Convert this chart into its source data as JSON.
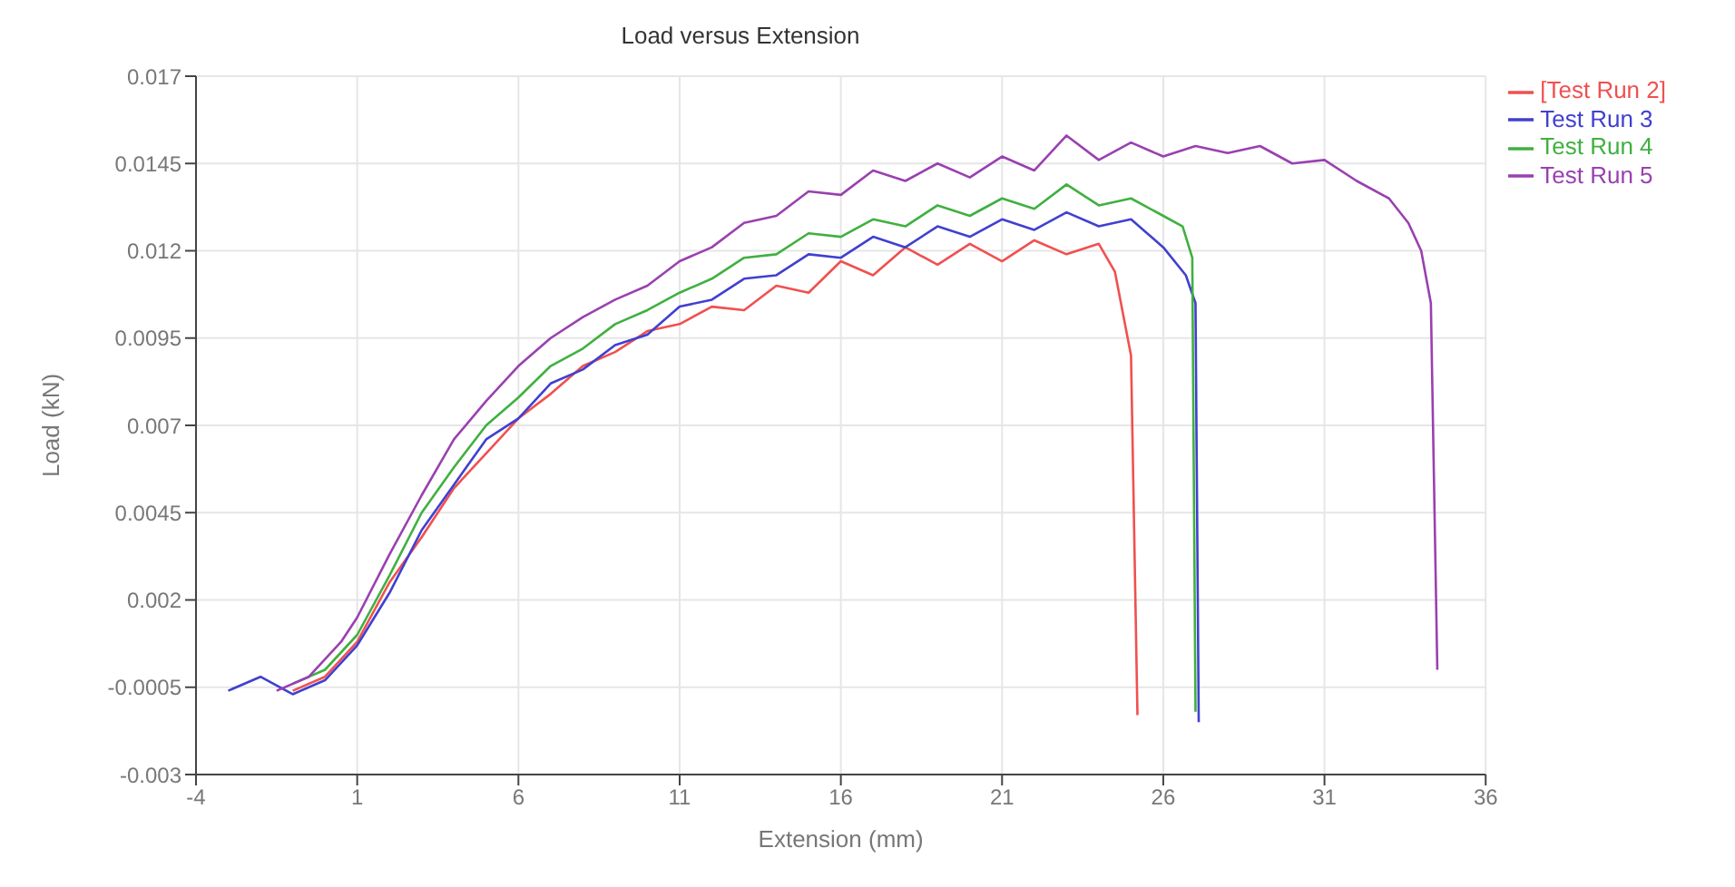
{
  "chart_data": {
    "type": "line",
    "title": "Load versus Extension",
    "xlabel": "Extension (mm)",
    "ylabel": "Load (kN)",
    "xlim": [
      -4,
      36
    ],
    "xticks": [
      -4,
      1,
      6,
      11,
      16,
      21,
      26,
      31,
      36
    ],
    "ylim": [
      -0.003,
      0.017
    ],
    "yticks": [
      -0.003,
      -0.0005,
      0.002,
      0.0045,
      0.007,
      0.0095,
      0.012,
      0.0145,
      0.017
    ],
    "grid": true,
    "legend": "top right",
    "series": [
      {
        "name": "[Test Run 2]",
        "color": "#f05050",
        "x": [
          -1,
          0,
          1,
          2,
          3,
          4,
          5,
          6,
          7,
          8,
          9,
          10,
          11,
          12,
          13,
          14,
          15,
          16,
          17,
          18,
          19,
          20,
          21,
          22,
          23,
          24,
          24.5,
          25,
          25.2
        ],
        "values": [
          -0.0006,
          -0.0002,
          0.0008,
          0.0025,
          0.0038,
          0.0052,
          0.0062,
          0.0072,
          0.0079,
          0.0087,
          0.0091,
          0.0097,
          0.0099,
          0.0104,
          0.0103,
          0.011,
          0.0108,
          0.0117,
          0.0113,
          0.0121,
          0.0116,
          0.0122,
          0.0117,
          0.0123,
          0.0119,
          0.0122,
          0.0114,
          0.009,
          -0.0013
        ]
      },
      {
        "name": "Test Run 3",
        "color": "#4040d0",
        "x": [
          -3,
          -2,
          -1,
          0,
          1,
          2,
          3,
          4,
          5,
          6,
          7,
          8,
          9,
          10,
          11,
          12,
          13,
          14,
          15,
          16,
          17,
          18,
          19,
          20,
          21,
          22,
          23,
          24,
          25,
          26,
          26.7,
          27,
          27.1
        ],
        "values": [
          -0.0006,
          -0.0002,
          -0.0007,
          -0.0003,
          0.0007,
          0.0022,
          0.004,
          0.0053,
          0.0066,
          0.0072,
          0.0082,
          0.0086,
          0.0093,
          0.0096,
          0.0104,
          0.0106,
          0.0112,
          0.0113,
          0.0119,
          0.0118,
          0.0124,
          0.0121,
          0.0127,
          0.0124,
          0.0129,
          0.0126,
          0.0131,
          0.0127,
          0.0129,
          0.0121,
          0.0113,
          0.0105,
          -0.0015
        ]
      },
      {
        "name": "Test Run 4",
        "color": "#40b040",
        "x": [
          -1,
          0,
          1,
          2,
          3,
          4,
          5,
          6,
          7,
          8,
          9,
          10,
          11,
          12,
          13,
          14,
          15,
          16,
          17,
          18,
          19,
          20,
          21,
          22,
          23,
          24,
          25,
          26,
          26.6,
          26.9,
          27
        ],
        "values": [
          -0.0004,
          0,
          0.001,
          0.0027,
          0.0045,
          0.0058,
          0.007,
          0.0078,
          0.0087,
          0.0092,
          0.0099,
          0.0103,
          0.0108,
          0.0112,
          0.0118,
          0.0119,
          0.0125,
          0.0124,
          0.0129,
          0.0127,
          0.0133,
          0.013,
          0.0135,
          0.0132,
          0.0139,
          0.0133,
          0.0135,
          0.013,
          0.0127,
          0.0118,
          -0.0012
        ]
      },
      {
        "name": "Test Run 5",
        "color": "#9a40b0",
        "x": [
          -1.5,
          -0.5,
          0.5,
          1,
          2,
          3,
          4,
          5,
          6,
          7,
          8,
          9,
          10,
          11,
          12,
          13,
          14,
          15,
          16,
          17,
          18,
          19,
          20,
          21,
          22,
          23,
          24,
          25,
          26,
          27,
          28,
          29,
          30,
          31,
          32,
          33,
          33.6,
          34,
          34.3,
          34.5
        ],
        "values": [
          -0.0006,
          -0.0002,
          0.0008,
          0.0015,
          0.0033,
          0.005,
          0.0066,
          0.0077,
          0.0087,
          0.0095,
          0.0101,
          0.0106,
          0.011,
          0.0117,
          0.0121,
          0.0128,
          0.013,
          0.0137,
          0.0136,
          0.0143,
          0.014,
          0.0145,
          0.0141,
          0.0147,
          0.0143,
          0.0153,
          0.0146,
          0.0151,
          0.0147,
          0.015,
          0.0148,
          0.015,
          0.0145,
          0.0146,
          0.014,
          0.0135,
          0.0128,
          0.012,
          0.0105,
          0
        ]
      }
    ]
  }
}
